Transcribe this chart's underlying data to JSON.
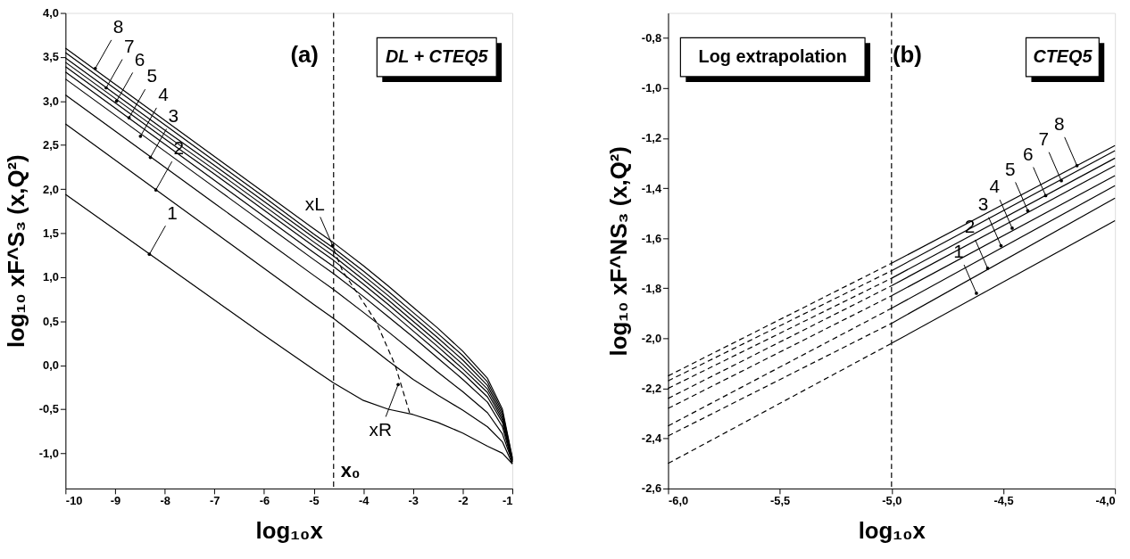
{
  "chart_data": [
    {
      "type": "line",
      "title": "(a)",
      "xlabel": "log₁₀x",
      "ylabel": "log₁₀ xF^S₃ (x,Q²)",
      "line_style": "solid",
      "x": [
        -10,
        -9,
        -8,
        -7,
        -6,
        -5,
        -4.6,
        -4,
        -3.5,
        -3,
        -2.5,
        -2,
        -1.5,
        -1.2,
        -1
      ],
      "xlim": [
        -10,
        -1
      ],
      "ylim": [
        -1.4,
        4.0
      ],
      "xticks": [
        -10,
        -9,
        -8,
        -7,
        -6,
        -5,
        -4,
        -3,
        -2,
        -1
      ],
      "yticks": [
        {
          "value": -1.0,
          "label": "-1,0"
        },
        {
          "value": -0.5,
          "label": "-0,5"
        },
        {
          "value": 0.0,
          "label": "0,0"
        },
        {
          "value": 0.5,
          "label": "0,5"
        },
        {
          "value": 1.0,
          "label": "1,0"
        },
        {
          "value": 1.5,
          "label": "1,5"
        },
        {
          "value": 2.0,
          "label": "2,0"
        },
        {
          "value": 2.5,
          "label": "2,5"
        },
        {
          "value": 3.0,
          "label": "3,0"
        },
        {
          "value": 3.5,
          "label": "3,5"
        },
        {
          "value": 4.0,
          "label": "4,0"
        }
      ],
      "grid": false,
      "series": [
        {
          "color": "#000000",
          "values": [
            3.6,
            3.19,
            2.78,
            2.37,
            1.96,
            1.55,
            1.39,
            1.13,
            0.9,
            0.66,
            0.42,
            0.16,
            -0.15,
            -0.5,
            -1.05
          ]
        },
        {
          "color": "#000000",
          "values": [
            3.55,
            3.14,
            2.73,
            2.32,
            1.91,
            1.49,
            1.33,
            1.07,
            0.84,
            0.6,
            0.36,
            0.11,
            -0.19,
            -0.53,
            -1.06
          ]
        },
        {
          "color": "#000000",
          "values": [
            3.49,
            3.08,
            2.67,
            2.27,
            1.86,
            1.45,
            1.29,
            1.02,
            0.79,
            0.55,
            0.31,
            0.06,
            -0.23,
            -0.56,
            -1.07
          ]
        },
        {
          "color": "#000000",
          "values": [
            3.44,
            3.03,
            2.62,
            2.22,
            1.81,
            1.4,
            1.24,
            0.97,
            0.74,
            0.5,
            0.26,
            0.01,
            -0.27,
            -0.59,
            -1.08
          ]
        },
        {
          "color": "#000000",
          "values": [
            3.39,
            2.98,
            2.57,
            2.17,
            1.76,
            1.35,
            1.19,
            0.92,
            0.69,
            0.45,
            0.21,
            -0.04,
            -0.31,
            -0.62,
            -1.08
          ]
        },
        {
          "color": "#000000",
          "values": [
            3.33,
            2.92,
            2.51,
            2.1,
            1.69,
            1.28,
            1.12,
            0.86,
            0.63,
            0.39,
            0.15,
            -0.09,
            -0.36,
            -0.65,
            -1.09
          ]
        },
        {
          "color": "#000000",
          "values": [
            3.25,
            2.84,
            2.43,
            2.02,
            1.61,
            1.2,
            1.04,
            0.78,
            0.55,
            0.32,
            0.08,
            -0.16,
            -0.42,
            -0.7,
            -1.1
          ]
        },
        {
          "color": "#000000",
          "values": [
            3.07,
            2.66,
            2.25,
            1.84,
            1.43,
            1.02,
            0.86,
            0.6,
            0.38,
            0.15,
            -0.08,
            -0.3,
            -0.54,
            -0.78,
            -1.1
          ]
        },
        {
          "color": "#000000",
          "values": [
            2.74,
            2.33,
            1.92,
            1.51,
            1.1,
            0.69,
            0.53,
            0.27,
            0.05,
            -0.16,
            -0.34,
            -0.51,
            -0.7,
            -0.87,
            -1.12
          ]
        },
        {
          "color": "#000000",
          "values": [
            1.94,
            1.54,
            1.14,
            0.74,
            0.34,
            -0.05,
            -0.2,
            -0.4,
            -0.5,
            -0.56,
            -0.65,
            -0.77,
            -0.92,
            -1.0,
            -1.12
          ]
        },
        {
          "type": "line",
          "color": "#000000",
          "line_style": "dashed",
          "x": [
            -4.6,
            -4.42,
            -4.1,
            -3.74,
            -3.36,
            -3.07
          ],
          "values": [
            1.32,
            1.07,
            0.8,
            0.49,
            0.0,
            -0.54
          ]
        }
      ],
      "ref_lines": [
        {
          "axis": "x",
          "value": -4.6,
          "label": "x₀",
          "line_style": "dashed",
          "color": "#000000"
        }
      ],
      "annotations": [
        "DL + CTEQ5",
        {
          "text": "1",
          "x": -8.31,
          "y": 1.26
        },
        {
          "text": "2",
          "x": -8.18,
          "y": 1.99
        },
        {
          "text": "3",
          "x": -8.29,
          "y": 2.36
        },
        {
          "text": "4",
          "x": -8.49,
          "y": 2.6
        },
        {
          "text": "5",
          "x": -8.72,
          "y": 2.81
        },
        {
          "text": "6",
          "x": -8.97,
          "y": 3.0
        },
        {
          "text": "7",
          "x": -9.18,
          "y": 3.15
        },
        {
          "text": "8",
          "x": -9.4,
          "y": 3.37
        },
        {
          "text": "xL",
          "x": -4.62,
          "y": 1.36
        },
        {
          "text": "xR",
          "x": -3.3,
          "y": -0.22
        }
      ]
    },
    {
      "type": "line",
      "title": "(b)",
      "xlabel": "log₁₀x",
      "ylabel": "log₁₀ xF^NS₃ (x,Q²)",
      "line_style": "solid",
      "xlim": [
        -6,
        -4
      ],
      "ylim": [
        -2.6,
        -0.7
      ],
      "xticks": [
        {
          "value": -6,
          "label": "-6,0"
        },
        {
          "value": -5.5,
          "label": "-5,5"
        },
        {
          "value": -5,
          "label": "-5,0"
        },
        {
          "value": -4.5,
          "label": "-4,5"
        },
        {
          "value": -4,
          "label": "-4,0"
        }
      ],
      "yticks": [
        {
          "value": -2.6,
          "label": "-2,6"
        },
        {
          "value": -2.4,
          "label": "-2,4"
        },
        {
          "value": -2.2,
          "label": "-2,2"
        },
        {
          "value": -2.0,
          "label": "-2,0"
        },
        {
          "value": -1.8,
          "label": "-1,8"
        },
        {
          "value": -1.6,
          "label": "-1,6"
        },
        {
          "value": -1.4,
          "label": "-1,4"
        },
        {
          "value": -1.2,
          "label": "-1,2"
        },
        {
          "value": -1.0,
          "label": "-1,0"
        },
        {
          "value": -0.8,
          "label": "-0,8"
        }
      ],
      "grid": false,
      "series": [
        {
          "color": "#000000",
          "line_style": "dashed",
          "x": [
            -6,
            -5
          ],
          "values": [
            -2.5,
            -2.02
          ]
        },
        {
          "color": "#000000",
          "line_style": "dashed",
          "x": [
            -6,
            -5
          ],
          "values": [
            -2.39,
            -1.94
          ]
        },
        {
          "color": "#000000",
          "line_style": "dashed",
          "x": [
            -6,
            -5
          ],
          "values": [
            -2.35,
            -1.88
          ]
        },
        {
          "color": "#000000",
          "line_style": "dashed",
          "x": [
            -6,
            -5
          ],
          "values": [
            -2.28,
            -1.83
          ]
        },
        {
          "color": "#000000",
          "line_style": "dashed",
          "x": [
            -6,
            -5
          ],
          "values": [
            -2.24,
            -1.79
          ]
        },
        {
          "color": "#000000",
          "line_style": "dashed",
          "x": [
            -6,
            -5
          ],
          "values": [
            -2.2,
            -1.76
          ]
        },
        {
          "color": "#000000",
          "line_style": "dashed",
          "x": [
            -6,
            -5
          ],
          "values": [
            -2.17,
            -1.73
          ]
        },
        {
          "color": "#000000",
          "line_style": "dashed",
          "x": [
            -6,
            -5
          ],
          "values": [
            -2.15,
            -1.7
          ]
        },
        {
          "color": "#000000",
          "x": [
            -5,
            -4
          ],
          "values": [
            -2.02,
            -1.53
          ]
        },
        {
          "color": "#000000",
          "x": [
            -5,
            -4
          ],
          "values": [
            -1.94,
            -1.44
          ]
        },
        {
          "color": "#000000",
          "x": [
            -5,
            -4
          ],
          "values": [
            -1.88,
            -1.39
          ]
        },
        {
          "color": "#000000",
          "x": [
            -5,
            -4
          ],
          "values": [
            -1.83,
            -1.35
          ]
        },
        {
          "color": "#000000",
          "x": [
            -5,
            -4
          ],
          "values": [
            -1.79,
            -1.31
          ]
        },
        {
          "color": "#000000",
          "x": [
            -5,
            -4
          ],
          "values": [
            -1.76,
            -1.28
          ]
        },
        {
          "color": "#000000",
          "x": [
            -5,
            -4
          ],
          "values": [
            -1.73,
            -1.25
          ]
        },
        {
          "color": "#000000",
          "x": [
            -5,
            -4
          ],
          "values": [
            -1.7,
            -1.23
          ]
        }
      ],
      "ref_lines": [
        {
          "axis": "x",
          "value": -5,
          "line_style": "dashed",
          "color": "#000000"
        }
      ],
      "annotations": [
        "Log extrapolation",
        "CTEQ5",
        {
          "text": "1",
          "x": -4.62,
          "y": -1.82
        },
        {
          "text": "2",
          "x": -4.57,
          "y": -1.72
        },
        {
          "text": "3",
          "x": -4.51,
          "y": -1.63
        },
        {
          "text": "4",
          "x": -4.46,
          "y": -1.56
        },
        {
          "text": "5",
          "x": -4.39,
          "y": -1.49
        },
        {
          "text": "6",
          "x": -4.31,
          "y": -1.43
        },
        {
          "text": "7",
          "x": -4.24,
          "y": -1.37
        },
        {
          "text": "8",
          "x": -4.17,
          "y": -1.31
        }
      ]
    }
  ]
}
